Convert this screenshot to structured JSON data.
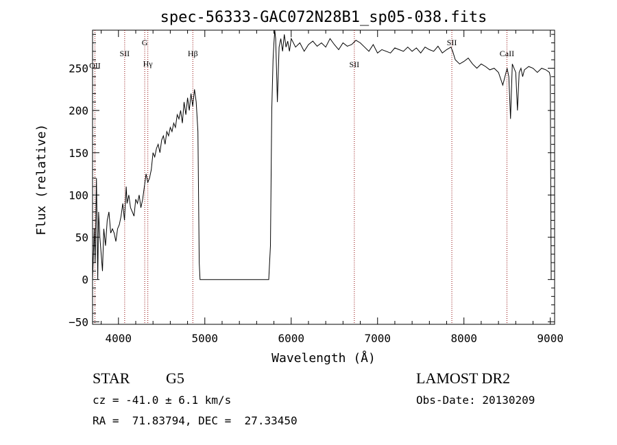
{
  "chart_data": {
    "type": "line",
    "title": "spec-56333-GAC072N28B1_sp05-038.fits",
    "xlabel": "Wavelength (Å)",
    "ylabel": "Flux (relative)",
    "xlim": [
      3700,
      9050
    ],
    "ylim": [
      -53,
      295
    ],
    "xticks": [
      4000,
      5000,
      6000,
      7000,
      8000,
      9000
    ],
    "yticks": [
      -50,
      0,
      50,
      100,
      150,
      200,
      250
    ],
    "grid": false,
    "legend": "none",
    "line_color": "#000000",
    "marker_color": "#8b0000",
    "series": [
      {
        "x": [
          3700,
          3720,
          3730,
          3745,
          3760,
          3770,
          3785,
          3800,
          3815,
          3830,
          3850,
          3870,
          3890,
          3910,
          3930,
          3950,
          3970,
          3990,
          4010,
          4030,
          4050,
          4070,
          4090,
          4100,
          4120,
          4140,
          4160,
          4180,
          4200,
          4220,
          4240,
          4260,
          4280,
          4300,
          4320,
          4340,
          4360,
          4380,
          4400,
          4420,
          4440,
          4460,
          4480,
          4500,
          4520,
          4540,
          4560,
          4580,
          4600,
          4620,
          4640,
          4660,
          4680,
          4700,
          4720,
          4740,
          4760,
          4780,
          4800,
          4820,
          4840,
          4860,
          4880,
          4900,
          4920,
          4935,
          4945,
          4960,
          5000,
          5200,
          5400,
          5600,
          5740,
          5760,
          5775,
          5790,
          5800,
          5810,
          5820,
          5830,
          5840,
          5860,
          5880,
          5900,
          5920,
          5940,
          5960,
          5980,
          6000,
          6050,
          6100,
          6150,
          6200,
          6250,
          6300,
          6350,
          6400,
          6450,
          6500,
          6550,
          6600,
          6650,
          6700,
          6750,
          6800,
          6850,
          6900,
          6950,
          7000,
          7050,
          7100,
          7150,
          7200,
          7250,
          7300,
          7350,
          7400,
          7450,
          7500,
          7550,
          7600,
          7650,
          7700,
          7750,
          7800,
          7850,
          7870,
          7900,
          7950,
          8000,
          8050,
          8100,
          8150,
          8200,
          8250,
          8300,
          8350,
          8400,
          8450,
          8500,
          8520,
          8540,
          8560,
          8580,
          8600,
          8620,
          8640,
          8660,
          8680,
          8700,
          8750,
          8800,
          8850,
          8900,
          8950,
          8990,
          9000,
          9005,
          9010
        ],
        "y": [
          0,
          60,
          20,
          120,
          0,
          80,
          50,
          30,
          10,
          60,
          40,
          70,
          80,
          55,
          60,
          55,
          45,
          60,
          65,
          75,
          90,
          70,
          110,
          90,
          100,
          85,
          80,
          75,
          95,
          90,
          100,
          85,
          95,
          110,
          125,
          115,
          120,
          130,
          150,
          145,
          155,
          160,
          150,
          165,
          170,
          160,
          175,
          170,
          180,
          175,
          185,
          180,
          195,
          190,
          200,
          185,
          210,
          195,
          215,
          200,
          220,
          205,
          225,
          210,
          175,
          20,
          0,
          0,
          0,
          0,
          0,
          0,
          0,
          40,
          200,
          260,
          280,
          300,
          285,
          250,
          210,
          275,
          285,
          270,
          290,
          275,
          282,
          270,
          285,
          275,
          280,
          270,
          278,
          282,
          276,
          280,
          275,
          285,
          278,
          272,
          280,
          276,
          278,
          283,
          280,
          275,
          270,
          278,
          268,
          272,
          270,
          268,
          274,
          272,
          270,
          275,
          270,
          274,
          268,
          275,
          272,
          270,
          276,
          268,
          272,
          275,
          270,
          260,
          255,
          258,
          262,
          255,
          250,
          255,
          252,
          248,
          250,
          245,
          230,
          250,
          240,
          190,
          255,
          250,
          245,
          200,
          245,
          250,
          240,
          248,
          252,
          250,
          245,
          250,
          248,
          245,
          240,
          120,
          0
        ]
      }
    ],
    "line_markers": [
      {
        "label": "OII",
        "x": 3727,
        "label_y": 250
      },
      {
        "label": "SII",
        "x": 4072,
        "label_y": 264
      },
      {
        "label": "G",
        "x": 4304,
        "label_y": 277
      },
      {
        "label": "Hγ",
        "x": 4340,
        "label_y": 252
      },
      {
        "label": "Hβ",
        "x": 4861,
        "label_y": 264
      },
      {
        "label": "SII",
        "x": 6731,
        "label_y": 251
      },
      {
        "label": "SII",
        "x": 7860,
        "label_y": 277
      },
      {
        "label": "CaII",
        "x": 8498,
        "label_y": 264
      }
    ]
  },
  "info": {
    "object_type": "STAR",
    "subclass": "G5",
    "survey": "LAMOST DR2",
    "redshift": "cz = -41.0 ± 6.1 km/s",
    "obs_date": "Obs-Date: 20130209",
    "coords": "RA =  71.83794, DEC =  27.33450"
  }
}
